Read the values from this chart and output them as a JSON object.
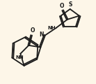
{
  "background_color": "#fdf6e8",
  "line_color": "#1a1a1a",
  "line_width": 1.3,
  "figsize": [
    1.38,
    1.2
  ],
  "dpi": 100,
  "xlim": [
    0,
    100
  ],
  "ylim": [
    0,
    87
  ]
}
